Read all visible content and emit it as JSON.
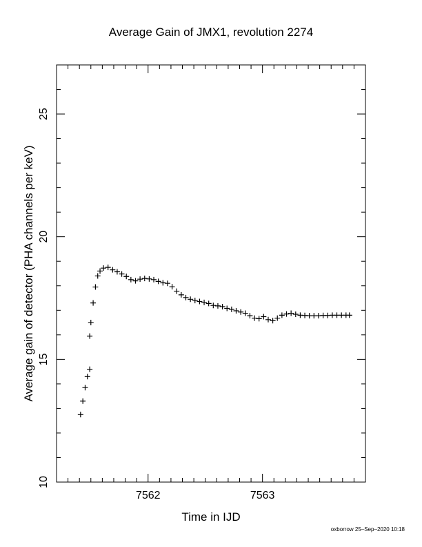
{
  "chart_data": {
    "type": "scatter",
    "title": "Average Gain of JMX1, revolution 2274",
    "xlabel": "Time in IJD",
    "ylabel": "Average gain of detector (PHA channels per keV)",
    "xlim": [
      7561.2,
      7563.9
    ],
    "ylim": [
      10,
      27
    ],
    "x_major_ticks": [
      7562,
      7563
    ],
    "x_tick_labels": [
      "7562",
      "7563"
    ],
    "x_minor_step": 0.1,
    "y_major_ticks": [
      10,
      15,
      20,
      25
    ],
    "y_tick_labels": [
      "10",
      "15",
      "20",
      "25"
    ],
    "y_minor_step": 1,
    "grid": false,
    "marker": "plus",
    "color": "#000000",
    "series": [
      {
        "x": [
          7561.41,
          7561.43,
          7561.45,
          7561.47,
          7561.49,
          7561.49,
          7561.5,
          7561.52,
          7561.54,
          7561.56,
          7561.58,
          7561.61,
          7561.65,
          7561.69,
          7561.73,
          7561.77,
          7561.81,
          7561.85,
          7561.89,
          7561.93,
          7561.97,
          7562.01,
          7562.05,
          7562.09,
          7562.13,
          7562.17,
          7562.21,
          7562.25,
          7562.29,
          7562.33,
          7562.37,
          7562.41,
          7562.45,
          7562.49,
          7562.53,
          7562.57,
          7562.61,
          7562.65,
          7562.69,
          7562.73,
          7562.77,
          7562.81,
          7562.85,
          7562.89,
          7562.93,
          7562.97,
          7563.01,
          7563.05,
          7563.09,
          7563.13,
          7563.17,
          7563.21,
          7563.25,
          7563.29,
          7563.33,
          7563.37,
          7563.41,
          7563.45,
          7563.49,
          7563.53,
          7563.57,
          7563.61,
          7563.65,
          7563.69,
          7563.73,
          7563.76
        ],
        "y": [
          12.75,
          13.3,
          13.85,
          14.3,
          14.6,
          15.95,
          16.5,
          17.3,
          17.95,
          18.4,
          18.6,
          18.72,
          18.75,
          18.65,
          18.57,
          18.48,
          18.38,
          18.25,
          18.2,
          18.27,
          18.3,
          18.28,
          18.25,
          18.18,
          18.12,
          18.1,
          17.96,
          17.78,
          17.63,
          17.52,
          17.45,
          17.4,
          17.36,
          17.32,
          17.28,
          17.2,
          17.18,
          17.15,
          17.08,
          17.04,
          16.98,
          16.93,
          16.88,
          16.78,
          16.68,
          16.66,
          16.74,
          16.62,
          16.58,
          16.68,
          16.8,
          16.85,
          16.88,
          16.84,
          16.8,
          16.79,
          16.78,
          16.78,
          16.78,
          16.79,
          16.79,
          16.8,
          16.8,
          16.8,
          16.8,
          16.8
        ]
      }
    ]
  },
  "footer": {
    "text": "oxborrow 25–Sep–2020 10:18"
  }
}
